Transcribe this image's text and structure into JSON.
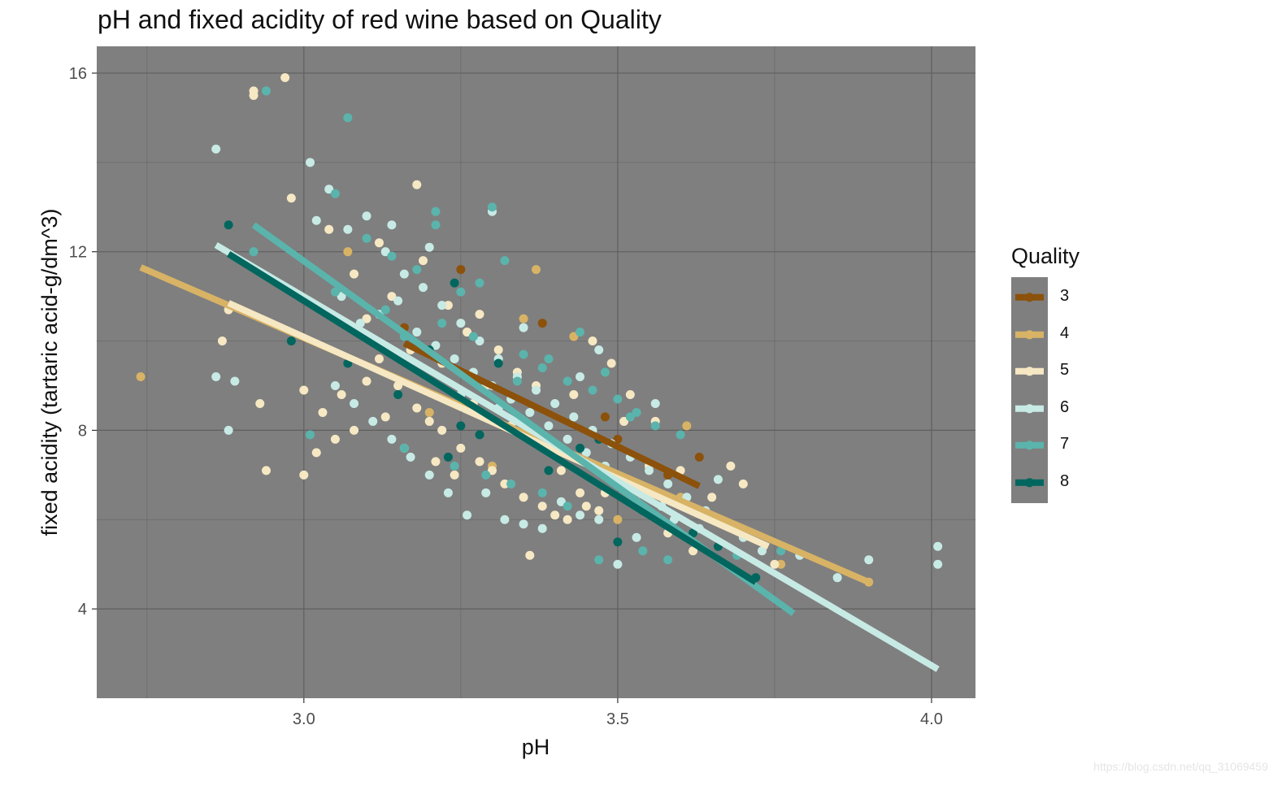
{
  "chart_data": {
    "type": "scatter",
    "title": "pH and fixed acidity of red wine based on Quality",
    "xlabel": "pH",
    "ylabel": "fixed acidity (tartaric acid-g/dm^3)",
    "xlim": [
      2.67,
      4.07
    ],
    "ylim": [
      2.0,
      16.6
    ],
    "xticks": [
      3.0,
      3.5,
      4.0
    ],
    "xticklabels": [
      "3.0",
      "3.5",
      "4.0"
    ],
    "yticks": [
      4,
      8,
      12,
      16
    ],
    "yticklabels": [
      "4",
      "8",
      "12",
      "16"
    ],
    "grid": true,
    "legend_title": "Quality",
    "legend_position": "right",
    "series": [
      {
        "name": "3",
        "color": "#8c510a",
        "fit": {
          "x1": 3.16,
          "y1": 9.95,
          "x2": 3.63,
          "y2": 6.75
        },
        "points": [
          [
            3.25,
            11.6
          ],
          [
            3.38,
            10.4
          ],
          [
            3.48,
            8.3
          ],
          [
            3.63,
            7.4
          ],
          [
            3.32,
            6.8
          ],
          [
            3.55,
            7.1
          ],
          [
            3.16,
            10.3
          ],
          [
            3.4,
            7.5
          ],
          [
            3.58,
            7.0
          ],
          [
            3.5,
            7.8
          ]
        ]
      },
      {
        "name": "4",
        "color": "#d8b365",
        "fit": {
          "x1": 2.74,
          "y1": 11.65,
          "x2": 3.9,
          "y2": 4.6
        },
        "points": [
          [
            2.74,
            9.2
          ],
          [
            3.37,
            11.6
          ],
          [
            3.43,
            10.1
          ],
          [
            3.07,
            12.0
          ],
          [
            3.61,
            8.1
          ],
          [
            3.9,
            4.6
          ],
          [
            3.2,
            8.4
          ],
          [
            3.3,
            7.2
          ],
          [
            3.5,
            6.0
          ],
          [
            3.76,
            5.0
          ],
          [
            3.05,
            10.5
          ],
          [
            3.35,
            10.5
          ],
          [
            3.6,
            6.5
          ]
        ]
      },
      {
        "name": "5",
        "color": "#f6e8c3",
        "fit": {
          "x1": 2.88,
          "y1": 10.85,
          "x2": 3.74,
          "y2": 5.4
        },
        "points": [
          [
            2.97,
            15.9
          ],
          [
            2.92,
            15.6
          ],
          [
            2.92,
            15.5
          ],
          [
            2.98,
            13.2
          ],
          [
            3.18,
            13.5
          ],
          [
            2.88,
            10.7
          ],
          [
            2.87,
            10.0
          ],
          [
            2.93,
            8.6
          ],
          [
            2.94,
            7.1
          ],
          [
            3.0,
            8.9
          ],
          [
            3.03,
            8.4
          ],
          [
            3.06,
            8.8
          ],
          [
            3.1,
            9.1
          ],
          [
            3.12,
            9.6
          ],
          [
            3.15,
            9.0
          ],
          [
            3.18,
            8.5
          ],
          [
            3.2,
            8.2
          ],
          [
            3.22,
            8.0
          ],
          [
            3.25,
            7.6
          ],
          [
            3.28,
            7.3
          ],
          [
            3.3,
            7.1
          ],
          [
            3.32,
            6.8
          ],
          [
            3.35,
            6.5
          ],
          [
            3.38,
            6.3
          ],
          [
            3.4,
            6.1
          ],
          [
            3.42,
            6.0
          ],
          [
            3.45,
            6.3
          ],
          [
            3.48,
            6.6
          ],
          [
            3.5,
            6.9
          ],
          [
            3.55,
            7.2
          ],
          [
            3.6,
            7.1
          ],
          [
            3.65,
            6.5
          ],
          [
            3.7,
            6.8
          ],
          [
            3.75,
            5.0
          ],
          [
            3.68,
            7.2
          ],
          [
            3.02,
            7.5
          ],
          [
            3.05,
            7.8
          ],
          [
            3.08,
            8.0
          ],
          [
            3.13,
            8.3
          ],
          [
            3.16,
            7.6
          ],
          [
            3.21,
            7.3
          ],
          [
            3.24,
            7.0
          ],
          [
            3.27,
            8.6
          ],
          [
            3.29,
            9.0
          ],
          [
            3.33,
            8.1
          ],
          [
            3.36,
            7.9
          ],
          [
            3.39,
            7.6
          ],
          [
            3.41,
            7.1
          ],
          [
            3.44,
            6.6
          ],
          [
            3.47,
            6.2
          ],
          [
            3.53,
            6.4
          ],
          [
            3.58,
            5.7
          ],
          [
            3.62,
            5.3
          ],
          [
            3.1,
            10.5
          ],
          [
            3.14,
            11.0
          ],
          [
            3.19,
            11.8
          ],
          [
            3.23,
            10.8
          ],
          [
            3.26,
            10.2
          ],
          [
            3.31,
            9.8
          ],
          [
            3.34,
            9.3
          ],
          [
            3.37,
            9.0
          ],
          [
            3.46,
            10.0
          ],
          [
            3.49,
            9.5
          ],
          [
            3.52,
            8.8
          ],
          [
            3.56,
            8.2
          ],
          [
            3.36,
            5.2
          ],
          [
            3.0,
            7.0
          ],
          [
            3.04,
            12.5
          ],
          [
            3.08,
            11.5
          ],
          [
            3.12,
            12.2
          ],
          [
            3.17,
            9.8
          ],
          [
            3.22,
            9.5
          ],
          [
            3.28,
            10.6
          ],
          [
            3.43,
            8.8
          ],
          [
            3.51,
            8.2
          ]
        ]
      },
      {
        "name": "6",
        "color": "#c7eae5",
        "fit": {
          "x1": 2.86,
          "y1": 12.15,
          "x2": 4.01,
          "y2": 2.65
        },
        "points": [
          [
            2.86,
            14.3
          ],
          [
            2.86,
            9.2
          ],
          [
            2.89,
            9.1
          ],
          [
            2.88,
            8.0
          ],
          [
            3.01,
            14.0
          ],
          [
            3.04,
            13.4
          ],
          [
            3.07,
            12.5
          ],
          [
            3.1,
            12.8
          ],
          [
            3.13,
            12.0
          ],
          [
            3.16,
            11.5
          ],
          [
            3.19,
            11.2
          ],
          [
            3.22,
            10.8
          ],
          [
            3.25,
            10.4
          ],
          [
            3.28,
            10.0
          ],
          [
            3.31,
            9.6
          ],
          [
            3.34,
            9.2
          ],
          [
            3.37,
            8.9
          ],
          [
            3.4,
            8.6
          ],
          [
            3.43,
            8.3
          ],
          [
            3.46,
            8.0
          ],
          [
            3.49,
            7.7
          ],
          [
            3.52,
            7.4
          ],
          [
            3.55,
            7.1
          ],
          [
            3.58,
            6.8
          ],
          [
            3.61,
            6.5
          ],
          [
            3.64,
            6.2
          ],
          [
            3.67,
            5.9
          ],
          [
            3.7,
            5.6
          ],
          [
            3.73,
            5.3
          ],
          [
            3.85,
            4.7
          ],
          [
            3.9,
            5.1
          ],
          [
            4.01,
            5.4
          ],
          [
            4.01,
            5.0
          ],
          [
            3.05,
            9.0
          ],
          [
            3.08,
            8.6
          ],
          [
            3.11,
            8.2
          ],
          [
            3.14,
            7.8
          ],
          [
            3.17,
            7.4
          ],
          [
            3.2,
            7.0
          ],
          [
            3.23,
            6.6
          ],
          [
            3.26,
            6.1
          ],
          [
            3.29,
            6.6
          ],
          [
            3.32,
            6.0
          ],
          [
            3.35,
            5.9
          ],
          [
            3.38,
            5.8
          ],
          [
            3.41,
            6.4
          ],
          [
            3.44,
            6.1
          ],
          [
            3.47,
            6.0
          ],
          [
            3.5,
            5.0
          ],
          [
            3.53,
            5.6
          ],
          [
            3.59,
            6.0
          ],
          [
            3.63,
            5.8
          ],
          [
            3.12,
            10.6
          ],
          [
            3.15,
            10.9
          ],
          [
            3.18,
            10.2
          ],
          [
            3.21,
            9.9
          ],
          [
            3.24,
            9.6
          ],
          [
            3.27,
            9.3
          ],
          [
            3.3,
            9.0
          ],
          [
            3.33,
            8.7
          ],
          [
            3.36,
            8.4
          ],
          [
            3.39,
            8.1
          ],
          [
            3.42,
            7.8
          ],
          [
            3.45,
            7.5
          ],
          [
            3.48,
            7.2
          ],
          [
            3.51,
            6.9
          ],
          [
            3.54,
            6.6
          ],
          [
            3.57,
            6.3
          ],
          [
            3.3,
            12.9
          ],
          [
            3.06,
            11.0
          ],
          [
            3.09,
            10.4
          ],
          [
            3.02,
            12.7
          ],
          [
            3.14,
            12.6
          ],
          [
            3.2,
            12.1
          ],
          [
            3.35,
            10.3
          ],
          [
            3.47,
            9.8
          ],
          [
            3.44,
            9.2
          ],
          [
            3.56,
            8.6
          ],
          [
            3.66,
            6.9
          ],
          [
            3.79,
            5.2
          ],
          [
            3.25,
            8.8
          ],
          [
            3.31,
            8.5
          ]
        ]
      },
      {
        "name": "7",
        "color": "#5ab4ac",
        "fit": {
          "x1": 2.92,
          "y1": 12.6,
          "x2": 3.78,
          "y2": 3.9
        },
        "points": [
          [
            2.94,
            15.6
          ],
          [
            3.07,
            15.0
          ],
          [
            3.05,
            13.3
          ],
          [
            3.21,
            12.9
          ],
          [
            3.3,
            13.0
          ],
          [
            3.32,
            11.8
          ],
          [
            3.21,
            12.6
          ],
          [
            3.28,
            11.3
          ],
          [
            3.14,
            11.9
          ],
          [
            3.1,
            12.3
          ],
          [
            3.18,
            11.6
          ],
          [
            3.25,
            11.1
          ],
          [
            3.22,
            10.4
          ],
          [
            3.27,
            10.1
          ],
          [
            3.35,
            9.7
          ],
          [
            3.38,
            9.4
          ],
          [
            3.42,
            9.1
          ],
          [
            3.46,
            8.9
          ],
          [
            3.5,
            8.7
          ],
          [
            3.53,
            8.4
          ],
          [
            3.56,
            8.1
          ],
          [
            3.01,
            7.9
          ],
          [
            3.16,
            7.6
          ],
          [
            3.24,
            7.2
          ],
          [
            3.29,
            7.0
          ],
          [
            3.33,
            6.8
          ],
          [
            3.38,
            6.6
          ],
          [
            3.42,
            6.3
          ],
          [
            3.47,
            5.1
          ],
          [
            3.54,
            5.3
          ],
          [
            3.58,
            5.1
          ],
          [
            3.69,
            5.2
          ],
          [
            3.76,
            5.3
          ],
          [
            3.05,
            11.1
          ],
          [
            2.92,
            12.0
          ],
          [
            3.13,
            10.7
          ],
          [
            3.16,
            10.1
          ],
          [
            3.34,
            9.1
          ],
          [
            3.39,
            9.6
          ],
          [
            3.44,
            10.2
          ],
          [
            3.48,
            9.3
          ],
          [
            3.52,
            8.3
          ],
          [
            3.6,
            7.9
          ]
        ]
      },
      {
        "name": "8",
        "color": "#01665e",
        "fit": {
          "x1": 2.88,
          "y1": 11.95,
          "x2": 3.72,
          "y2": 4.6
        },
        "points": [
          [
            2.88,
            12.6
          ],
          [
            2.98,
            10.0
          ],
          [
            3.24,
            11.3
          ],
          [
            3.2,
            9.8
          ],
          [
            3.25,
            8.1
          ],
          [
            3.23,
            7.4
          ],
          [
            3.31,
            9.5
          ],
          [
            3.34,
            8.3
          ],
          [
            3.39,
            7.1
          ],
          [
            3.44,
            7.6
          ],
          [
            3.5,
            5.5
          ],
          [
            3.54,
            6.2
          ],
          [
            3.62,
            5.7
          ],
          [
            3.66,
            5.4
          ],
          [
            3.72,
            4.7
          ],
          [
            3.07,
            9.5
          ],
          [
            3.15,
            8.8
          ],
          [
            3.28,
            7.9
          ],
          [
            3.47,
            7.8
          ]
        ]
      }
    ]
  },
  "watermark": "https://blog.csdn.net/qq_31069459"
}
